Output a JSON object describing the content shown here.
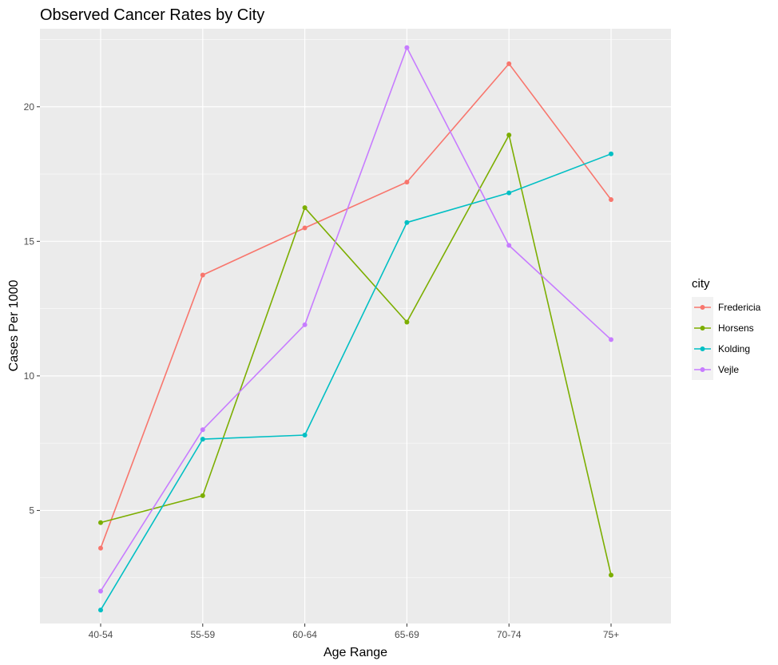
{
  "chart_data": {
    "type": "line",
    "title": "Observed Cancer Rates by City",
    "xlabel": "Age Range",
    "ylabel": "Cases Per 1000",
    "categories": [
      "40-54",
      "55-59",
      "60-64",
      "65-69",
      "70-74",
      "75+"
    ],
    "ylim": [
      0.8,
      22.9
    ],
    "yticks": [
      5,
      10,
      15,
      20
    ],
    "grid": true,
    "legend": {
      "title": "city",
      "placement": "right"
    },
    "series": [
      {
        "name": "Fredericia",
        "color": "#F8766D",
        "values": [
          3.6,
          13.75,
          15.5,
          17.2,
          21.6,
          16.55
        ]
      },
      {
        "name": "Horsens",
        "color": "#7CAE00",
        "values": [
          4.55,
          5.55,
          16.25,
          12.0,
          18.95,
          2.6
        ]
      },
      {
        "name": "Kolding",
        "color": "#00BFC4",
        "values": [
          1.3,
          7.65,
          7.8,
          15.7,
          16.8,
          18.25
        ]
      },
      {
        "name": "Vejle",
        "color": "#C77CFF",
        "values": [
          2.0,
          8.0,
          11.9,
          22.2,
          14.85,
          11.35
        ]
      }
    ]
  }
}
